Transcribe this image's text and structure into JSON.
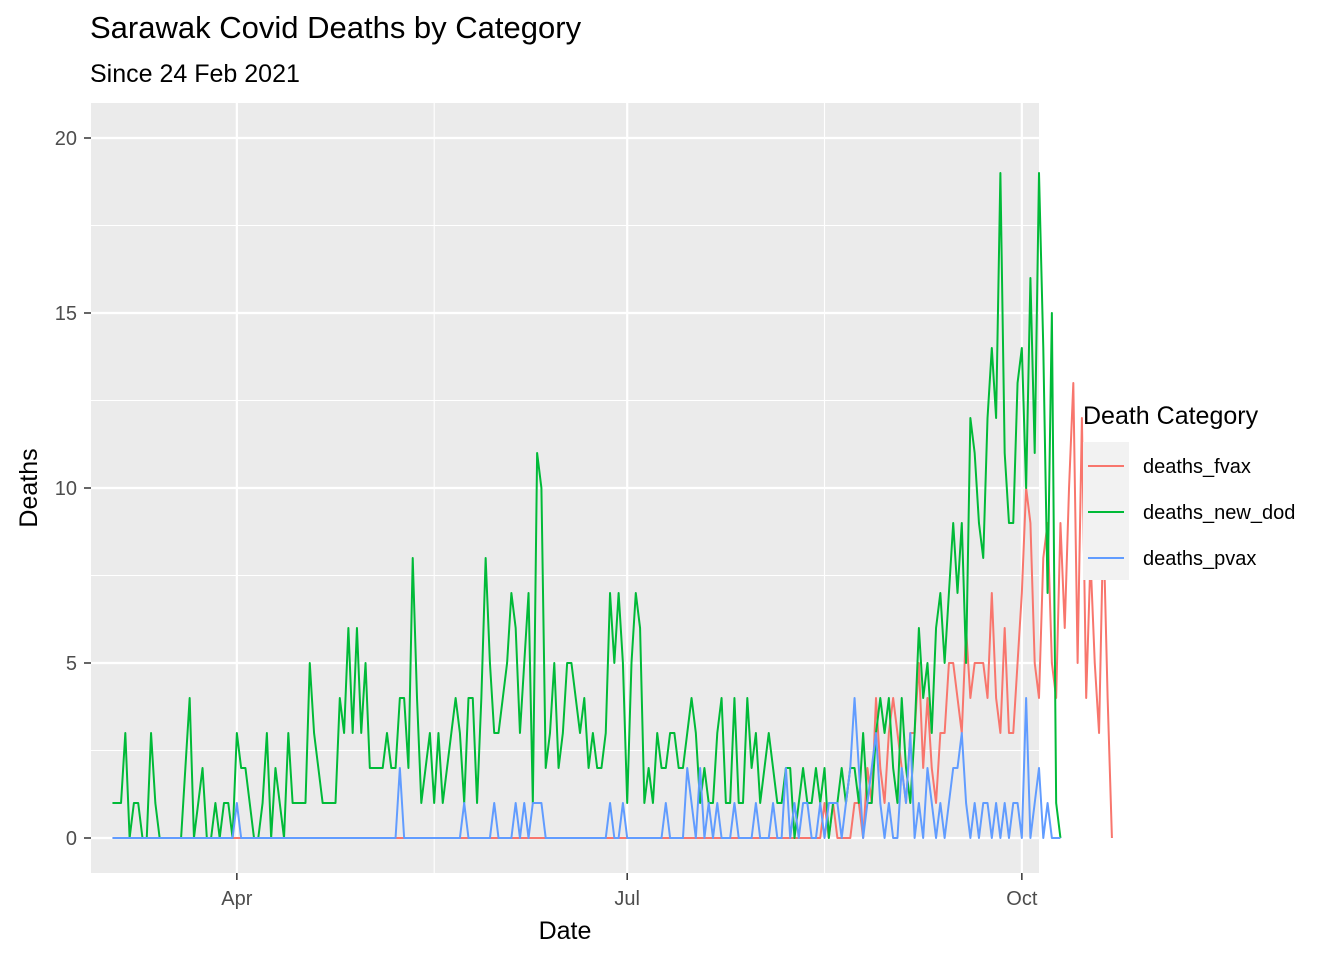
{
  "chart_data": {
    "type": "line",
    "title": "Sarawak Covid Deaths by Category",
    "subtitle": "Since 24 Feb 2021",
    "xlabel": "Date",
    "ylabel": "Deaths",
    "x_start_date": "2021-03-03",
    "x_end_date": "2021-10-01",
    "xlim_days": [
      -5,
      216
    ],
    "ylim": [
      -1,
      21
    ],
    "y_ticks": [
      0,
      5,
      10,
      15,
      20
    ],
    "y_tick_labels": [
      "0",
      "5",
      "10",
      "15",
      "20"
    ],
    "x_ticks": [
      {
        "label": "Apr",
        "day": 29
      },
      {
        "label": "Jul",
        "day": 120
      },
      {
        "label": "Oct",
        "day": 212
      }
    ],
    "x_minor_days": [
      -16,
      75,
      166
    ],
    "grid": true,
    "legend": {
      "title": "Death Category",
      "position": "right"
    },
    "series": [
      {
        "name": "deaths_fvax",
        "color": "#F8766D",
        "values": [
          0,
          0,
          0,
          0,
          0,
          0,
          0,
          0,
          0,
          0,
          0,
          0,
          0,
          0,
          0,
          0,
          0,
          0,
          0,
          0,
          0,
          0,
          0,
          0,
          0,
          0,
          0,
          0,
          0,
          0,
          0,
          0,
          0,
          0,
          0,
          0,
          0,
          0,
          0,
          0,
          0,
          0,
          0,
          0,
          0,
          0,
          0,
          0,
          0,
          0,
          0,
          0,
          0,
          0,
          0,
          0,
          0,
          0,
          0,
          0,
          0,
          0,
          0,
          0,
          0,
          0,
          0,
          0,
          0,
          0,
          0,
          0,
          0,
          0,
          0,
          0,
          0,
          0,
          0,
          0,
          0,
          0,
          0,
          0,
          0,
          0,
          0,
          0,
          0,
          0,
          0,
          0,
          0,
          0,
          0,
          0,
          0,
          0,
          0,
          0,
          0,
          0,
          0,
          0,
          0,
          0,
          0,
          0,
          0,
          0,
          0,
          0,
          0,
          0,
          0,
          0,
          0,
          0,
          0,
          0,
          0,
          0,
          0,
          0,
          0,
          0,
          0,
          0,
          0,
          0,
          0,
          0,
          0,
          0,
          0,
          0,
          0,
          0,
          0,
          0,
          0,
          0,
          0,
          0,
          0,
          0,
          0,
          0,
          0,
          0,
          0,
          0,
          0,
          0,
          0,
          0,
          0,
          0,
          0,
          0,
          0,
          0,
          0,
          0,
          0,
          0,
          1,
          0,
          1,
          0,
          0,
          0,
          0,
          1,
          1,
          0,
          2,
          1,
          4,
          2,
          1,
          3,
          4,
          3,
          2,
          1,
          3,
          3,
          5,
          2,
          4,
          2,
          1,
          3,
          3,
          5,
          5,
          4,
          3,
          6,
          4,
          5,
          5,
          5,
          4,
          7,
          4,
          3,
          6,
          3,
          3,
          5,
          7,
          10,
          9,
          5,
          4,
          8,
          9,
          5,
          4,
          9,
          6,
          10,
          13,
          5,
          12,
          4,
          8,
          5,
          3,
          9,
          4,
          0
        ]
      },
      {
        "name": "deaths_new_dod",
        "color": "#00BA38",
        "values": [
          1,
          1,
          1,
          3,
          0,
          1,
          1,
          0,
          0,
          3,
          1,
          0,
          0,
          0,
          0,
          0,
          0,
          2,
          4,
          0,
          1,
          2,
          0,
          0,
          1,
          0,
          1,
          1,
          0,
          3,
          2,
          2,
          1,
          0,
          0,
          1,
          3,
          0,
          2,
          1,
          0,
          3,
          1,
          1,
          1,
          1,
          5,
          3,
          2,
          1,
          1,
          1,
          1,
          4,
          3,
          6,
          3,
          6,
          3,
          5,
          2,
          2,
          2,
          2,
          3,
          2,
          2,
          4,
          4,
          2,
          8,
          4,
          1,
          2,
          3,
          1,
          3,
          1,
          2,
          3,
          4,
          3,
          1,
          4,
          4,
          1,
          4,
          8,
          5,
          3,
          3,
          4,
          5,
          7,
          6,
          3,
          5,
          7,
          1,
          11,
          10,
          2,
          3,
          5,
          2,
          3,
          5,
          5,
          4,
          3,
          4,
          2,
          3,
          2,
          2,
          3,
          7,
          5,
          7,
          5,
          1,
          5,
          7,
          6,
          1,
          2,
          1,
          3,
          2,
          2,
          3,
          3,
          2,
          2,
          3,
          4,
          3,
          1,
          2,
          1,
          1,
          3,
          4,
          1,
          1,
          4,
          1,
          1,
          4,
          2,
          3,
          1,
          2,
          3,
          2,
          1,
          1,
          2,
          2,
          0,
          1,
          2,
          1,
          1,
          2,
          1,
          2,
          0,
          1,
          1,
          2,
          1,
          2,
          2,
          1,
          3,
          1,
          1,
          3,
          4,
          3,
          4,
          2,
          1,
          4,
          2,
          1,
          3,
          6,
          4,
          5,
          3,
          6,
          7,
          5,
          7,
          9,
          7,
          9,
          5,
          12,
          11,
          9,
          8,
          12,
          14,
          12,
          19,
          11,
          9,
          9,
          13,
          14,
          10,
          16,
          11,
          19,
          14,
          7,
          15,
          1,
          0
        ]
      },
      {
        "name": "deaths_pvax",
        "color": "#619CFF",
        "values": [
          0,
          0,
          0,
          0,
          0,
          0,
          0,
          0,
          0,
          0,
          0,
          0,
          0,
          0,
          0,
          0,
          0,
          0,
          0,
          0,
          0,
          0,
          0,
          0,
          0,
          0,
          0,
          0,
          0,
          1,
          0,
          0,
          0,
          0,
          0,
          0,
          0,
          0,
          0,
          0,
          0,
          0,
          0,
          0,
          0,
          0,
          0,
          0,
          0,
          0,
          0,
          0,
          0,
          0,
          0,
          0,
          0,
          0,
          0,
          0,
          0,
          0,
          0,
          0,
          0,
          0,
          0,
          2,
          0,
          0,
          0,
          0,
          0,
          0,
          0,
          0,
          0,
          0,
          0,
          0,
          0,
          0,
          1,
          0,
          0,
          0,
          0,
          0,
          0,
          1,
          0,
          0,
          0,
          0,
          1,
          0,
          1,
          0,
          1,
          1,
          1,
          0,
          0,
          0,
          0,
          0,
          0,
          0,
          0,
          0,
          0,
          0,
          0,
          0,
          0,
          0,
          1,
          0,
          0,
          1,
          0,
          0,
          0,
          0,
          0,
          0,
          0,
          0,
          0,
          1,
          0,
          0,
          0,
          0,
          2,
          1,
          0,
          2,
          0,
          1,
          0,
          1,
          0,
          0,
          0,
          1,
          0,
          0,
          0,
          0,
          1,
          0,
          0,
          0,
          1,
          0,
          0,
          2,
          0,
          1,
          0,
          1,
          1,
          0,
          0,
          1,
          0,
          1,
          1,
          1,
          0,
          1,
          2,
          4,
          2,
          0,
          1,
          2,
          3,
          1,
          0,
          1,
          0,
          0,
          2,
          1,
          3,
          0,
          1,
          0,
          2,
          1,
          0,
          1,
          0,
          1,
          2,
          2,
          3,
          1,
          0,
          1,
          0,
          1,
          1,
          0,
          1,
          0,
          1,
          0,
          1,
          1,
          0,
          4,
          0,
          1,
          2,
          0,
          1,
          0,
          0,
          0
        ]
      }
    ]
  }
}
